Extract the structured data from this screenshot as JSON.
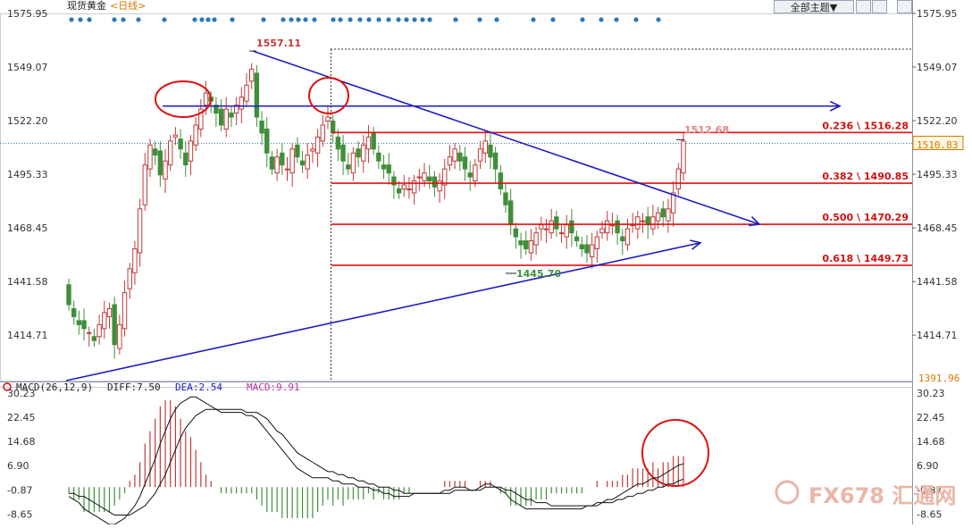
{
  "header": {
    "title": "现货黄金",
    "period": "<日线>",
    "theme_button": "全部主题▼"
  },
  "colors": {
    "up": "#c23a3a",
    "down": "#3f8f3a",
    "trend": "#1c1cc4",
    "fib": "#e01010",
    "macd_up": "#c23a3a",
    "macd_down": "#3f8f3a"
  },
  "chart_data": [
    {
      "type": "candlestick",
      "title": "现货黄金 <日线>",
      "y_ticks": [
        "1575.95",
        "1549.07",
        "1522.20",
        "1495.33",
        "1468.45",
        "1441.58",
        "1414.71"
      ],
      "ylim": [
        1391.96,
        1575.95
      ],
      "current_price": "1510.83",
      "bottom_price": "1391.96",
      "annotations": {
        "high": "1557.11",
        "low": "1445.70",
        "last": "1512.68"
      },
      "fib_levels": [
        {
          "label": "0.236 \\ 1516.28",
          "value": 1516.28
        },
        {
          "label": "0.382 \\ 1490.85",
          "value": 1490.85
        },
        {
          "label": "0.500 \\ 1470.29",
          "value": 1470.29
        },
        {
          "label": "0.618 \\ 1449.73",
          "value": 1449.73
        }
      ],
      "closes": [
        1430,
        1424,
        1420,
        1418,
        1416,
        1412,
        1420,
        1426,
        1428,
        1410,
        1420,
        1436,
        1448,
        1458,
        1478,
        1500,
        1510,
        1505,
        1495,
        1502,
        1512,
        1515,
        1508,
        1500,
        1512,
        1520,
        1528,
        1536,
        1532,
        1526,
        1520,
        1528,
        1524,
        1530,
        1534,
        1540,
        1548,
        1524,
        1516,
        1506,
        1498,
        1504,
        1500,
        1498,
        1508,
        1504,
        1500,
        1505,
        1508,
        1514,
        1520,
        1524,
        1516,
        1508,
        1502,
        1498,
        1506,
        1504,
        1510,
        1514,
        1508,
        1502,
        1498,
        1496,
        1490,
        1486,
        1490,
        1488,
        1492,
        1494,
        1496,
        1492,
        1489,
        1492,
        1498,
        1504,
        1508,
        1502,
        1498,
        1494,
        1500,
        1508,
        1512,
        1504,
        1498,
        1488,
        1480,
        1470,
        1464,
        1460,
        1458,
        1462,
        1466,
        1470,
        1468,
        1472,
        1468,
        1466,
        1470,
        1466,
        1462,
        1458,
        1456,
        1460,
        1464,
        1468,
        1472,
        1470,
        1466,
        1462,
        1468,
        1470,
        1474,
        1472,
        1470,
        1474,
        1476,
        1474,
        1478,
        1486,
        1498,
        1512
      ]
    },
    {
      "type": "bar",
      "title": "MACD(26,12,9)",
      "legend": [
        "DIFF:7.50",
        "DEA:2.54",
        "MACD:9.91"
      ],
      "y_ticks": [
        "30.23",
        "22.45",
        "14.68",
        "6.90",
        "-0.87",
        "-8.65"
      ],
      "ylim": [
        -12,
        30.23
      ],
      "diff": [
        -3,
        -4,
        -5,
        -7,
        -8,
        -9,
        -10,
        -11,
        -12,
        -12,
        -11,
        -10,
        -8,
        -6,
        -3,
        1,
        5,
        9,
        14,
        18,
        22,
        25,
        27,
        28,
        29,
        29,
        28,
        27,
        26,
        25,
        24,
        24,
        24,
        24,
        24,
        23,
        23,
        22,
        20,
        18,
        16,
        14,
        12,
        10,
        8,
        6,
        5,
        4,
        3,
        3,
        3,
        3,
        2,
        2,
        1,
        1,
        1,
        0,
        0,
        0,
        -1,
        -1,
        -2,
        -2,
        -3,
        -3,
        -3,
        -3,
        -2,
        -2,
        -2,
        -2,
        -2,
        -2,
        -1,
        -1,
        0,
        0,
        0,
        -1,
        -1,
        0,
        1,
        1,
        0,
        -1,
        -2,
        -4,
        -5,
        -6,
        -7,
        -7,
        -7,
        -7,
        -7,
        -7,
        -7,
        -7,
        -7,
        -7,
        -7,
        -7,
        -6,
        -6,
        -5,
        -5,
        -4,
        -4,
        -3,
        -2,
        -1,
        0,
        1,
        1,
        2,
        3,
        3,
        4,
        5,
        6,
        7,
        7.5
      ],
      "dea": [
        -2,
        -2,
        -3,
        -3,
        -4,
        -5,
        -6,
        -7,
        -8,
        -9,
        -9,
        -9,
        -9,
        -8,
        -7,
        -6,
        -4,
        -2,
        1,
        4,
        8,
        12,
        16,
        19,
        21,
        23,
        24,
        25,
        25,
        25,
        25,
        25,
        25,
        25,
        25,
        24,
        24,
        24,
        23,
        22,
        20,
        18,
        17,
        15,
        13,
        11,
        10,
        9,
        8,
        7,
        6,
        5,
        5,
        4,
        4,
        3,
        3,
        2,
        2,
        1,
        1,
        0,
        0,
        0,
        -1,
        -1,
        -2,
        -2,
        -2,
        -2,
        -2,
        -2,
        -2,
        -2,
        -2,
        -2,
        -1,
        -1,
        -1,
        -1,
        -1,
        -1,
        0,
        0,
        0,
        0,
        -1,
        -1,
        -2,
        -3,
        -4,
        -4,
        -5,
        -5,
        -5,
        -6,
        -6,
        -6,
        -6,
        -6,
        -6,
        -6,
        -6,
        -6,
        -6,
        -5,
        -5,
        -5,
        -4,
        -4,
        -3,
        -3,
        -2,
        -2,
        -1,
        -1,
        0,
        0,
        1,
        1,
        2,
        2.54
      ]
    }
  ],
  "watermark": "FX678 汇通网"
}
